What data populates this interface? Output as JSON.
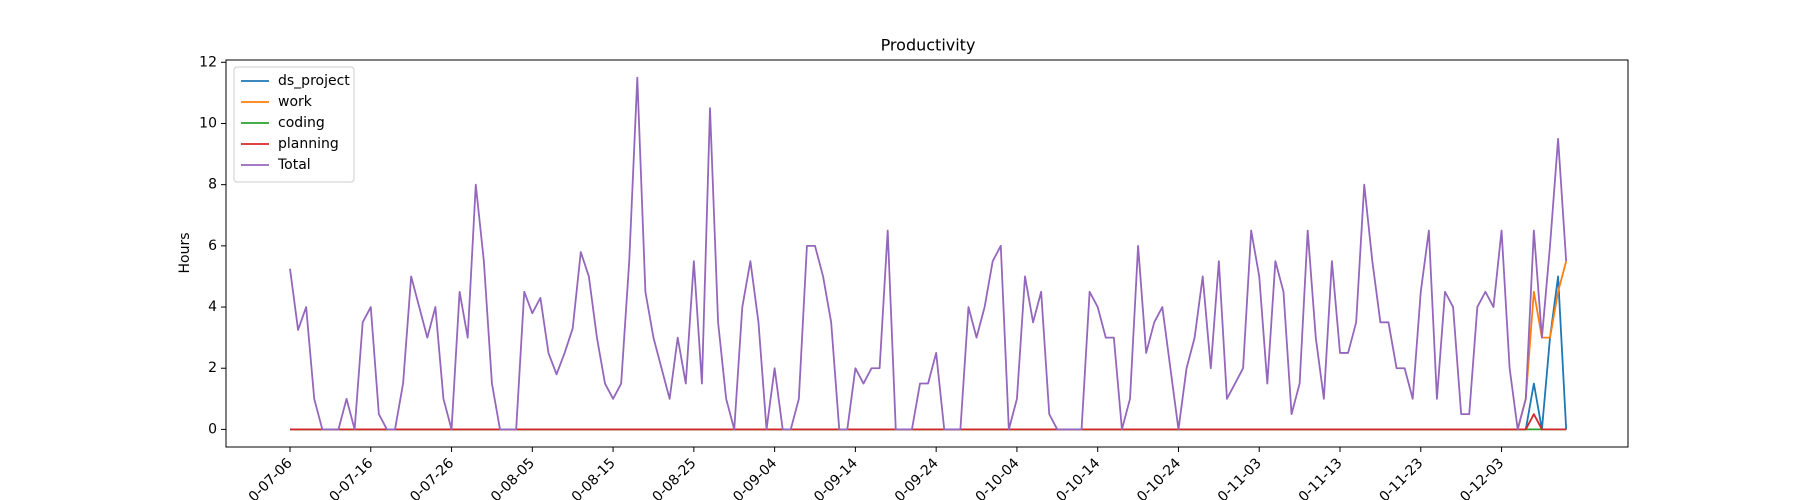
{
  "chart_data": {
    "type": "line",
    "title": "Productivity",
    "y_label": "Hours",
    "categories": [
      "0-07-06",
      null,
      null,
      null,
      null,
      null,
      null,
      null,
      null,
      null,
      "0-07-16",
      null,
      null,
      null,
      null,
      null,
      null,
      null,
      null,
      null,
      "0-07-26",
      null,
      null,
      null,
      null,
      null,
      null,
      null,
      null,
      null,
      "0-08-05",
      null,
      null,
      null,
      null,
      null,
      null,
      null,
      null,
      null,
      "0-08-15",
      null,
      null,
      null,
      null,
      null,
      null,
      null,
      null,
      null,
      "0-08-25",
      null,
      null,
      null,
      null,
      null,
      null,
      null,
      null,
      null,
      "0-09-04",
      null,
      null,
      null,
      null,
      null,
      null,
      null,
      null,
      null,
      "0-09-14",
      null,
      null,
      null,
      null,
      null,
      null,
      null,
      null,
      null,
      "0-09-24",
      null,
      null,
      null,
      null,
      null,
      null,
      null,
      null,
      null,
      "0-10-04",
      null,
      null,
      null,
      null,
      null,
      null,
      null,
      null,
      null,
      "0-10-14",
      null,
      null,
      null,
      null,
      null,
      null,
      null,
      null,
      null,
      "0-10-24",
      null,
      null,
      null,
      null,
      null,
      null,
      null,
      null,
      null,
      "0-11-03",
      null,
      null,
      null,
      null,
      null,
      null,
      null,
      null,
      null,
      "0-11-13",
      null,
      null,
      null,
      null,
      null,
      null,
      null,
      null,
      null,
      "0-11-23",
      null,
      null,
      null,
      null,
      null,
      null,
      null,
      null,
      null,
      "0-12-03",
      null,
      null,
      null,
      null,
      null,
      null,
      null,
      null
    ],
    "series": [
      {
        "name": "ds_project",
        "color": "#1f77b4",
        "values": [
          0,
          0,
          0,
          0,
          0,
          0,
          0,
          0,
          0,
          0,
          0,
          0,
          0,
          0,
          0,
          0,
          0,
          0,
          0,
          0,
          0,
          0,
          0,
          0,
          0,
          0,
          0,
          0,
          0,
          0,
          0,
          0,
          0,
          0,
          0,
          0,
          0,
          0,
          0,
          0,
          0,
          0,
          0,
          0,
          0,
          0,
          0,
          0,
          0,
          0,
          0,
          0,
          0,
          0,
          0,
          0,
          0,
          0,
          0,
          0,
          0,
          0,
          0,
          0,
          0,
          0,
          0,
          0,
          0,
          0,
          0,
          0,
          0,
          0,
          0,
          0,
          0,
          0,
          0,
          0,
          0,
          0,
          0,
          0,
          0,
          0,
          0,
          0,
          0,
          0,
          0,
          0,
          0,
          0,
          0,
          0,
          0,
          0,
          0,
          0,
          0,
          0,
          0,
          0,
          0,
          0,
          0,
          0,
          0,
          0,
          0,
          0,
          0,
          0,
          0,
          0,
          0,
          0,
          0,
          0,
          0,
          0,
          0,
          0,
          0,
          0,
          0,
          0,
          0,
          0,
          0,
          0,
          0,
          0,
          0,
          0,
          0,
          0,
          0,
          0,
          0,
          0,
          0,
          0,
          0,
          0,
          0,
          0,
          0,
          0,
          0,
          0,
          0,
          0,
          1.5,
          0,
          3,
          5,
          0
        ]
      },
      {
        "name": "work",
        "color": "#ff7f0e",
        "values": [
          0,
          0,
          0,
          0,
          0,
          0,
          0,
          0,
          0,
          0,
          0,
          0,
          0,
          0,
          0,
          0,
          0,
          0,
          0,
          0,
          0,
          0,
          0,
          0,
          0,
          0,
          0,
          0,
          0,
          0,
          0,
          0,
          0,
          0,
          0,
          0,
          0,
          0,
          0,
          0,
          0,
          0,
          0,
          0,
          0,
          0,
          0,
          0,
          0,
          0,
          0,
          0,
          0,
          0,
          0,
          0,
          0,
          0,
          0,
          0,
          0,
          0,
          0,
          0,
          0,
          0,
          0,
          0,
          0,
          0,
          0,
          0,
          0,
          0,
          0,
          0,
          0,
          0,
          0,
          0,
          0,
          0,
          0,
          0,
          0,
          0,
          0,
          0,
          0,
          0,
          0,
          0,
          0,
          0,
          0,
          0,
          0,
          0,
          0,
          0,
          0,
          0,
          0,
          0,
          0,
          0,
          0,
          0,
          0,
          0,
          0,
          0,
          0,
          0,
          0,
          0,
          0,
          0,
          0,
          0,
          0,
          0,
          0,
          0,
          0,
          0,
          0,
          0,
          0,
          0,
          0,
          0,
          0,
          0,
          0,
          0,
          0,
          0,
          0,
          0,
          0,
          0,
          0,
          0,
          0,
          0,
          0,
          0,
          0,
          0,
          0,
          0,
          0,
          1,
          4.5,
          3,
          3,
          4.5,
          5.5
        ]
      },
      {
        "name": "coding",
        "color": "#2ca02c",
        "values": [
          0,
          0,
          0,
          0,
          0,
          0,
          0,
          0,
          0,
          0,
          0,
          0,
          0,
          0,
          0,
          0,
          0,
          0,
          0,
          0,
          0,
          0,
          0,
          0,
          0,
          0,
          0,
          0,
          0,
          0,
          0,
          0,
          0,
          0,
          0,
          0,
          0,
          0,
          0,
          0,
          0,
          0,
          0,
          0,
          0,
          0,
          0,
          0,
          0,
          0,
          0,
          0,
          0,
          0,
          0,
          0,
          0,
          0,
          0,
          0,
          0,
          0,
          0,
          0,
          0,
          0,
          0,
          0,
          0,
          0,
          0,
          0,
          0,
          0,
          0,
          0,
          0,
          0,
          0,
          0,
          0,
          0,
          0,
          0,
          0,
          0,
          0,
          0,
          0,
          0,
          0,
          0,
          0,
          0,
          0,
          0,
          0,
          0,
          0,
          0,
          0,
          0,
          0,
          0,
          0,
          0,
          0,
          0,
          0,
          0,
          0,
          0,
          0,
          0,
          0,
          0,
          0,
          0,
          0,
          0,
          0,
          0,
          0,
          0,
          0,
          0,
          0,
          0,
          0,
          0,
          0,
          0,
          0,
          0,
          0,
          0,
          0,
          0,
          0,
          0,
          0,
          0,
          0,
          0,
          0,
          0,
          0,
          0,
          0,
          0,
          0,
          0,
          0,
          0,
          0,
          0,
          0,
          0,
          0
        ]
      },
      {
        "name": "planning",
        "color": "#d62728",
        "values": [
          0,
          0,
          0,
          0,
          0,
          0,
          0,
          0,
          0,
          0,
          0,
          0,
          0,
          0,
          0,
          0,
          0,
          0,
          0,
          0,
          0,
          0,
          0,
          0,
          0,
          0,
          0,
          0,
          0,
          0,
          0,
          0,
          0,
          0,
          0,
          0,
          0,
          0,
          0,
          0,
          0,
          0,
          0,
          0,
          0,
          0,
          0,
          0,
          0,
          0,
          0,
          0,
          0,
          0,
          0,
          0,
          0,
          0,
          0,
          0,
          0,
          0,
          0,
          0,
          0,
          0,
          0,
          0,
          0,
          0,
          0,
          0,
          0,
          0,
          0,
          0,
          0,
          0,
          0,
          0,
          0,
          0,
          0,
          0,
          0,
          0,
          0,
          0,
          0,
          0,
          0,
          0,
          0,
          0,
          0,
          0,
          0,
          0,
          0,
          0,
          0,
          0,
          0,
          0,
          0,
          0,
          0,
          0,
          0,
          0,
          0,
          0,
          0,
          0,
          0,
          0,
          0,
          0,
          0,
          0,
          0,
          0,
          0,
          0,
          0,
          0,
          0,
          0,
          0,
          0,
          0,
          0,
          0,
          0,
          0,
          0,
          0,
          0,
          0,
          0,
          0,
          0,
          0,
          0,
          0,
          0,
          0,
          0,
          0,
          0,
          0,
          0,
          0,
          0,
          0.5,
          0,
          0,
          0,
          0
        ]
      },
      {
        "name": "Total",
        "color": "#9467bd",
        "values": [
          5.25,
          3.25,
          4,
          1,
          0,
          0,
          0,
          1,
          0,
          3.5,
          4,
          0.5,
          0,
          0,
          1.5,
          5,
          4,
          3,
          4,
          1,
          0,
          4.5,
          3,
          8,
          5.5,
          1.5,
          0,
          0,
          0,
          4.5,
          3.8,
          4.3,
          2.5,
          1.8,
          2.5,
          3.3,
          5.8,
          5,
          3,
          1.5,
          1,
          1.5,
          5.5,
          11.5,
          4.5,
          3,
          2,
          1,
          3,
          1.5,
          5.5,
          1.5,
          10.5,
          3.5,
          1,
          0,
          4,
          5.5,
          3.5,
          0,
          2,
          0,
          0,
          1,
          6,
          6,
          5,
          3.5,
          0,
          0,
          2,
          1.5,
          2,
          2,
          6.5,
          0,
          0,
          0,
          1.5,
          1.5,
          2.5,
          0,
          0,
          0,
          4,
          3,
          4,
          5.5,
          6,
          0,
          1,
          5,
          3.5,
          4.5,
          0.5,
          0,
          0,
          0,
          0,
          4.5,
          4,
          3,
          3,
          0,
          1,
          6,
          2.5,
          3.5,
          4,
          2,
          0,
          2,
          3,
          5,
          2,
          5.5,
          1,
          1.5,
          2,
          6.5,
          5,
          1.5,
          5.5,
          4.5,
          0.5,
          1.5,
          6.5,
          3,
          1,
          5.5,
          2.5,
          2.5,
          3.5,
          8,
          5.5,
          3.5,
          3.5,
          2,
          2,
          1,
          4.5,
          6.5,
          1,
          4.5,
          4,
          0.5,
          0.5,
          4,
          4.5,
          4,
          6.5,
          2,
          0,
          1,
          6.5,
          3,
          6,
          9.5,
          5.5
        ]
      }
    ],
    "ylim": [
      -0.575,
      12.075
    ],
    "yticks": [
      0,
      2,
      4,
      6,
      8,
      10,
      12
    ],
    "legend": "upper left"
  }
}
